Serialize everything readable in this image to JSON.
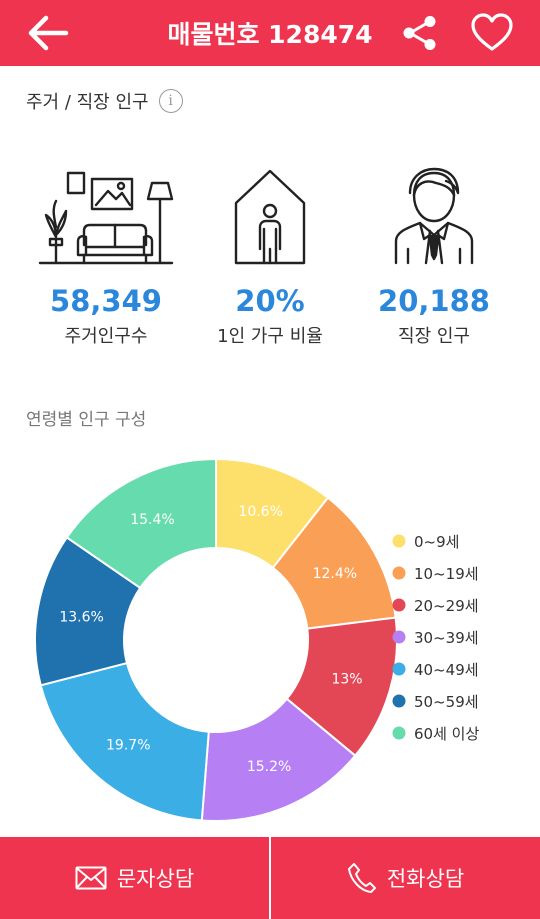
{
  "header": {
    "title": "매물번호 128474",
    "back_icon": "arrow-left-icon",
    "share_icon": "share-icon",
    "favorite_icon": "heart-icon",
    "color": "#ef3450"
  },
  "population_section": {
    "title": "주거 / 직장 인구",
    "info_icon_glyph": "i"
  },
  "stats": [
    {
      "icon": "living-room-icon",
      "value": "58,349",
      "label": "주거인구수"
    },
    {
      "icon": "single-person-house-icon",
      "value": "20%",
      "label": "1인 가구 비율"
    },
    {
      "icon": "office-worker-icon",
      "value": "20,188",
      "label": "직장 인구"
    }
  ],
  "age_section": {
    "title": "연령별 인구 구성"
  },
  "chart_data": {
    "type": "pie",
    "categories": [
      "0~9세",
      "10~19세",
      "20~29세",
      "30~39세",
      "40~49세",
      "50~59세",
      "60세 이상"
    ],
    "values": [
      10.6,
      12.4,
      13,
      15.2,
      19.7,
      13.6,
      15.4
    ],
    "data_labels": [
      "10.6%",
      "12.4%",
      "13%",
      "15.2%",
      "19.7%",
      "13.6%",
      "15.4%"
    ],
    "colors": [
      "#fde06b",
      "#f99f56",
      "#e34755",
      "#b67ff4",
      "#3aaee5",
      "#1f72ad",
      "#66dbae"
    ],
    "legend_position": "right"
  },
  "bottom_bar": {
    "sms_label": "문자상담",
    "call_label": "전화상담",
    "sms_icon": "envelope-icon",
    "call_icon": "phone-icon"
  }
}
